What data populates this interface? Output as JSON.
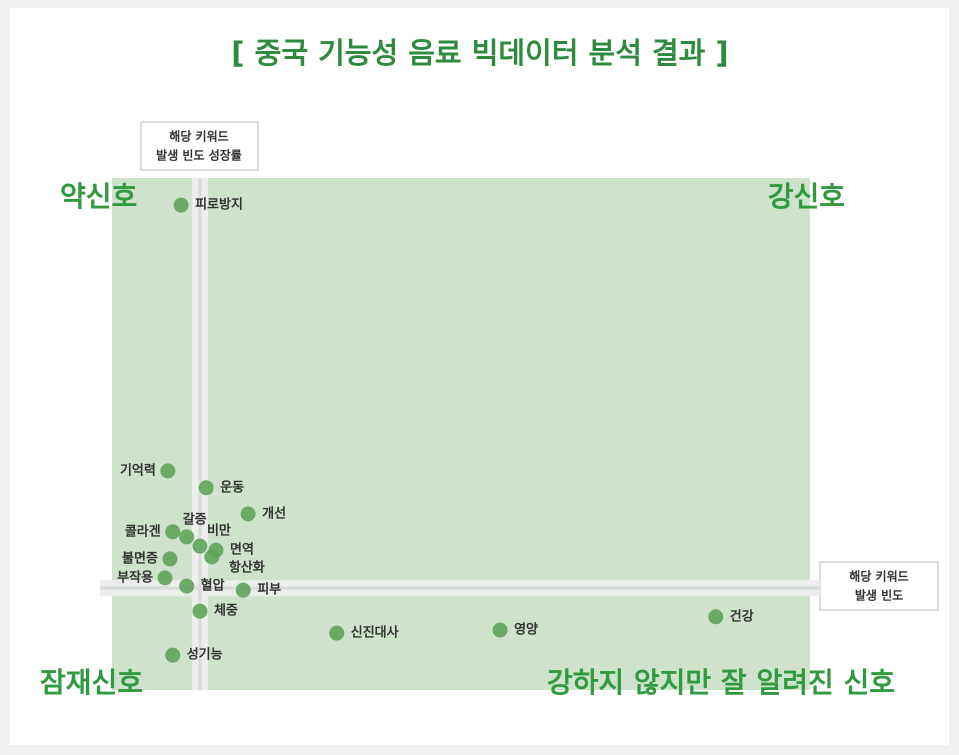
{
  "chart_data": {
    "type": "scatter",
    "title": "[ 중국 기능성 음료 빅데이터 분석 결과 ]",
    "y_axis_label": [
      "해당 키워드",
      "발생 빈도 성장률"
    ],
    "x_axis_label": [
      "해당 키워드",
      "발생 빈도"
    ],
    "annotations": [
      "약신호",
      "강신호",
      "잠재신호",
      "강하지 않지만 잘 알려진 신호"
    ],
    "labels": [
      "피로방지",
      "기억력",
      "운동",
      "개선",
      "갈증",
      "콜라겐",
      "비만",
      "면역",
      "항산화",
      "불면증",
      "부작용",
      "혈압",
      "피부",
      "체중",
      "신진대사",
      "영양",
      "건강",
      "성기능"
    ],
    "x": [
      9.9,
      8.0,
      13.5,
      19.5,
      10.7,
      8.7,
      12.6,
      14.9,
      14.3,
      8.3,
      7.6,
      10.7,
      18.8,
      12.6,
      32.2,
      55.6,
      86.5,
      8.7
    ],
    "y": [
      94.7,
      42.8,
      39.5,
      34.4,
      29.9,
      30.9,
      28.1,
      27.3,
      26.0,
      25.6,
      21.9,
      20.3,
      19.5,
      15.4,
      11.1,
      11.7,
      14.3,
      6.8
    ],
    "xlim": [
      0,
      100
    ],
    "ylim": [
      0,
      100
    ],
    "dividers": {
      "x": 12.6,
      "y": 19.5
    },
    "color": "#5fa35a",
    "quadrant_color": "#cfe3cc"
  }
}
